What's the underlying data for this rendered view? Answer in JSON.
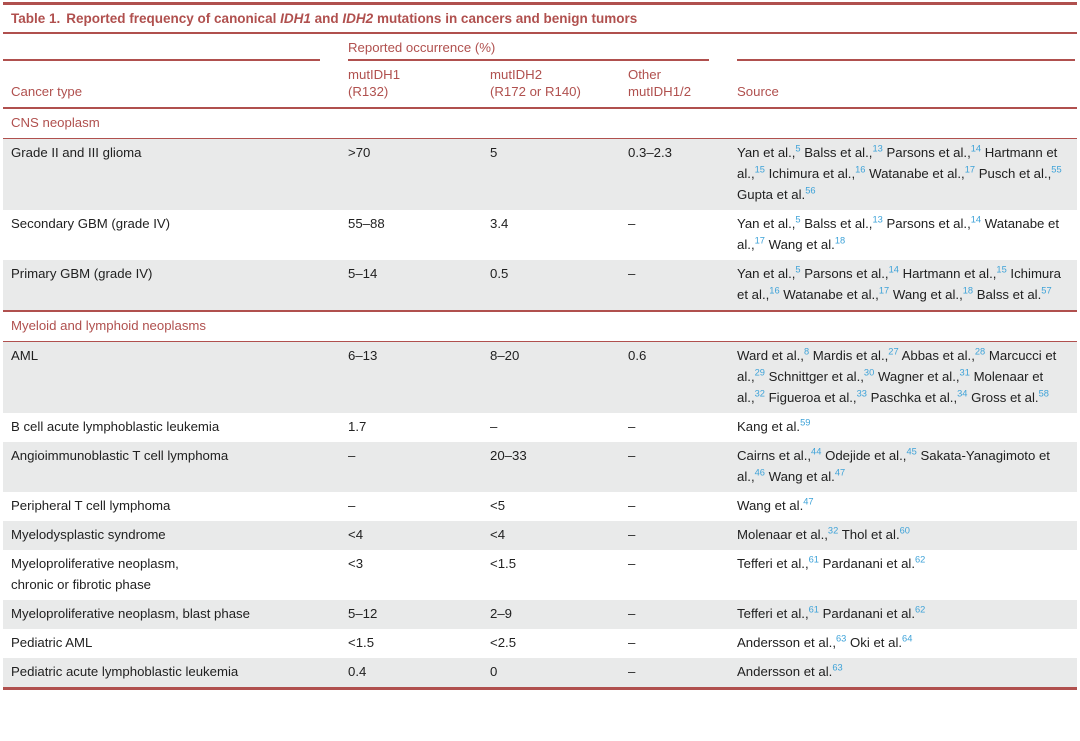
{
  "colors": {
    "accent_red": "#b0504e",
    "reference_link_blue": "#3da2d8",
    "row_stripe_gray": "#e9eaea",
    "body_text": "#212121"
  },
  "title": {
    "label": "Table 1.",
    "text_before": "Reported frequency of canonical",
    "gene1": "IDH1",
    "text_mid": "and",
    "gene2": "IDH2",
    "text_after": "mutations in cancers and benign tumors"
  },
  "header": {
    "spanner": "Reported occurrence (%)",
    "col_cancer_type": "Cancer type",
    "col_mutidh1_line1": "mutIDH1",
    "col_mutidh1_line2": "(R132)",
    "col_mutidh2_line1": "mutIDH2",
    "col_mutidh2_line2": "(R172 or R140)",
    "col_other_line1": "Other",
    "col_other_line2": "mutIDH1/2",
    "col_source": "Source"
  },
  "sections": [
    {
      "label": "CNS neoplasm",
      "rows": [
        {
          "cancer_type": "Grade II and III glioma",
          "mutidh1": ">70",
          "mutidh2": "5",
          "other": "0.3–2.3",
          "source": [
            {
              "t": "Yan et al.,",
              "r": "5"
            },
            {
              "t": "Balss et al.,",
              "r": "13"
            },
            {
              "t": "Parsons et al.,",
              "r": "14"
            },
            {
              "t": "Hartmann et al.,",
              "r": "15"
            },
            {
              "t": "Ichimura et al.,",
              "r": "16"
            },
            {
              "t": "Watanabe et al.,",
              "r": "17"
            },
            {
              "t": "Pusch et al.,",
              "r": "55"
            },
            {
              "t": "Gupta et al.",
              "r": "56"
            }
          ]
        },
        {
          "cancer_type": "Secondary GBM (grade IV)",
          "mutidh1": "55–88",
          "mutidh2": "3.4",
          "other": "–",
          "source": [
            {
              "t": "Yan et al.,",
              "r": "5"
            },
            {
              "t": "Balss et al.,",
              "r": "13"
            },
            {
              "t": "Parsons et al.,",
              "r": "14"
            },
            {
              "t": "Watanabe et al.,",
              "r": "17"
            },
            {
              "t": "Wang et al.",
              "r": "18"
            }
          ]
        },
        {
          "cancer_type": "Primary GBM (grade IV)",
          "mutidh1": "5–14",
          "mutidh2": "0.5",
          "other": "–",
          "source": [
            {
              "t": "Yan et al.,",
              "r": "5"
            },
            {
              "t": "Parsons et al.,",
              "r": "14"
            },
            {
              "t": "Hartmann et al.,",
              "r": "15"
            },
            {
              "t": "Ichimura et al.,",
              "r": "16"
            },
            {
              "t": "Watanabe et al.,",
              "r": "17"
            },
            {
              "t": "Wang et al.,",
              "r": "18"
            },
            {
              "t": "Balss et al.",
              "r": "57"
            }
          ]
        }
      ]
    },
    {
      "label": "Myeloid and lymphoid neoplasms",
      "rows": [
        {
          "cancer_type": "AML",
          "mutidh1": "6–13",
          "mutidh2": "8–20",
          "other": "0.6",
          "source": [
            {
              "t": "Ward et al.,",
              "r": "8"
            },
            {
              "t": "Mardis et al.,",
              "r": "27"
            },
            {
              "t": "Abbas et al.,",
              "r": "28"
            },
            {
              "t": "Marcucci et al.,",
              "r": "29"
            },
            {
              "t": "Schnittger et al.,",
              "r": "30"
            },
            {
              "t": "Wagner et al.,",
              "r": "31"
            },
            {
              "t": "Molenaar et al.,",
              "r": "32"
            },
            {
              "t": "Figueroa et al.,",
              "r": "33"
            },
            {
              "t": "Paschka et al.,",
              "r": "34"
            },
            {
              "t": "Gross et al.",
              "r": "58"
            }
          ]
        },
        {
          "cancer_type": "B cell acute lymphoblastic leukemia",
          "mutidh1": "1.7",
          "mutidh2": "–",
          "other": "–",
          "source": [
            {
              "t": "Kang et al.",
              "r": "59"
            }
          ]
        },
        {
          "cancer_type": "Angioimmunoblastic T cell lymphoma",
          "mutidh1": "–",
          "mutidh2": "20–33",
          "other": "–",
          "source": [
            {
              "t": "Cairns et al.,",
              "r": "44"
            },
            {
              "t": "Odejide et al.,",
              "r": "45"
            },
            {
              "t": "Sakata-Yanagimoto et al.,",
              "r": "46"
            },
            {
              "t": "Wang et al.",
              "r": "47"
            }
          ]
        },
        {
          "cancer_type": "Peripheral T cell lymphoma",
          "mutidh1": "–",
          "mutidh2": "<5",
          "other": "–",
          "source": [
            {
              "t": "Wang et al.",
              "r": "47"
            }
          ]
        },
        {
          "cancer_type": "Myelodysplastic syndrome",
          "mutidh1": "<4",
          "mutidh2": "<4",
          "other": "–",
          "source": [
            {
              "t": "Molenaar et al.,",
              "r": "32"
            },
            {
              "t": "Thol et al.",
              "r": "60"
            }
          ]
        },
        {
          "cancer_type": "Myeloproliferative neoplasm,\nchronic or fibrotic phase",
          "mutidh1": "<3",
          "mutidh2": "<1.5",
          "other": "–",
          "source": [
            {
              "t": "Tefferi et al.,",
              "r": "61"
            },
            {
              "t": "Pardanani et al.",
              "r": "62"
            }
          ]
        },
        {
          "cancer_type": "Myeloproliferative neoplasm, blast phase",
          "mutidh1": "5–12",
          "mutidh2": "2–9",
          "other": "–",
          "source": [
            {
              "t": "Tefferi et al.,",
              "r": "61"
            },
            {
              "t": "Pardanani et al.",
              "r": "62"
            }
          ]
        },
        {
          "cancer_type": "Pediatric AML",
          "mutidh1": "<1.5",
          "mutidh2": "<2.5",
          "other": "–",
          "source": [
            {
              "t": "Andersson et al.,",
              "r": "63"
            },
            {
              "t": "Oki et al.",
              "r": "64"
            }
          ]
        },
        {
          "cancer_type": "Pediatric acute lymphoblastic leukemia",
          "mutidh1": "0.4",
          "mutidh2": "0",
          "other": "–",
          "source": [
            {
              "t": "Andersson et al.",
              "r": "63"
            }
          ]
        }
      ]
    }
  ]
}
